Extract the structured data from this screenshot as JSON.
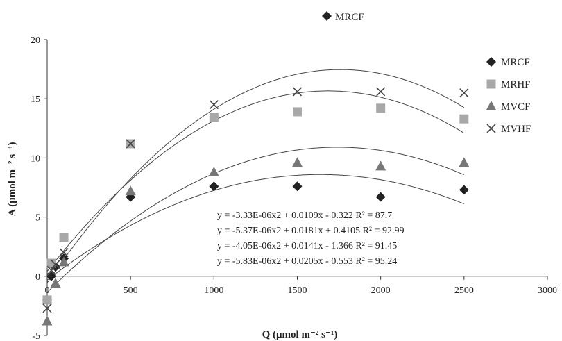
{
  "chart_data": {
    "type": "scatter",
    "title": "MRCF",
    "xlabel": "Q (μmol m⁻² s⁻¹)",
    "ylabel": "A (μmol m⁻² s⁻¹)",
    "xlim": [
      0,
      3000
    ],
    "ylim": [
      -5,
      20
    ],
    "xticks": [
      0,
      500,
      1000,
      1500,
      2000,
      2500,
      3000
    ],
    "yticks": [
      -5,
      0,
      5,
      10,
      15,
      20
    ],
    "grid": false,
    "legend": "right",
    "series": [
      {
        "name": "MRCF",
        "marker": "diamond",
        "color": "#222222",
        "x": [
          0,
          25,
          50,
          100,
          500,
          1000,
          1500,
          2000,
          2500
        ],
        "y": [
          -2,
          0,
          0.8,
          1.5,
          6.7,
          7.6,
          7.6,
          6.7,
          7.3
        ],
        "fit": {
          "a": -3.33e-06,
          "b": 0.0109,
          "c": -0.322
        }
      },
      {
        "name": "MRHF",
        "marker": "square",
        "color": "#a8a8a8",
        "x": [
          0,
          25,
          100,
          500,
          1000,
          1500,
          2000,
          2500
        ],
        "y": [
          -2,
          1.1,
          3.3,
          11.2,
          13.4,
          13.9,
          14.2,
          13.3
        ],
        "fit": {
          "a": -5.37e-06,
          "b": 0.0181,
          "c": 0.4105
        }
      },
      {
        "name": "MVCF",
        "marker": "triangle",
        "color": "#777777",
        "x": [
          0,
          50,
          100,
          500,
          1000,
          1500,
          2000,
          2500
        ],
        "y": [
          -3.8,
          -0.6,
          1.2,
          7.2,
          8.8,
          9.6,
          9.3,
          9.6
        ],
        "fit": {
          "a": -4.05e-06,
          "b": 0.0141,
          "c": -1.366
        }
      },
      {
        "name": "MVHF",
        "marker": "cross",
        "color": "#444444",
        "x": [
          0,
          25,
          50,
          100,
          500,
          1000,
          1500,
          2000,
          2500
        ],
        "y": [
          -2.7,
          0.5,
          1.0,
          2.0,
          11.2,
          14.5,
          15.6,
          15.6,
          15.5
        ],
        "fit": {
          "a": -5.83e-06,
          "b": 0.0205,
          "c": -0.553
        }
      }
    ],
    "annotations": [
      "y = -3.33E-06x2 + 0.0109x - 0.322 R² = 87.7",
      "y = -5.37E-06x2 + 0.0181x + 0.4105 R² = 92.99",
      "y = -4.05E-06x2 + 0.0141x - 1.366 R² = 91.45",
      "y = -5.83E-06x2 + 0.0205x - 0.553 R² = 95.24"
    ]
  }
}
